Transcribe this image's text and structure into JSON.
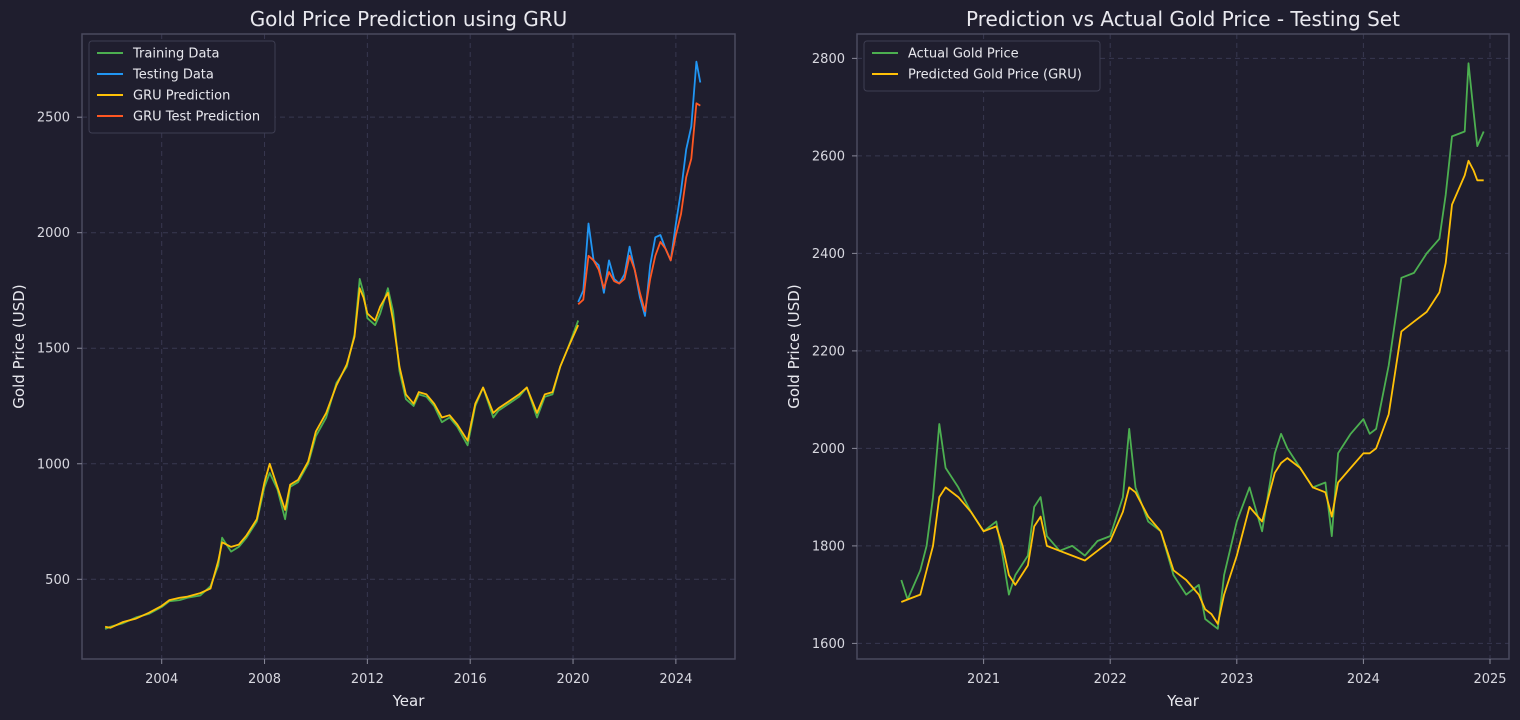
{
  "chart_data": [
    {
      "type": "line",
      "title": "Gold Price Prediction using GRU",
      "xlabel": "Year",
      "ylabel": "Gold Price (USD)",
      "xlim": [
        2000.9,
        2026.3
      ],
      "ylim": [
        155,
        2860
      ],
      "xticks": [
        2004,
        2008,
        2012,
        2016,
        2020,
        2024
      ],
      "yticks": [
        500,
        1000,
        1500,
        2000,
        2500
      ],
      "grid": true,
      "legend_position": "top-left",
      "series": [
        {
          "name": "Training Data",
          "color": "#4caf50",
          "x": [
            2001.8,
            2002.0,
            2002.5,
            2003.0,
            2003.5,
            2004.0,
            2004.3,
            2004.7,
            2005.0,
            2005.5,
            2005.9,
            2006.2,
            2006.35,
            2006.7,
            2007.0,
            2007.3,
            2007.7,
            2008.0,
            2008.2,
            2008.5,
            2008.8,
            2009.0,
            2009.3,
            2009.7,
            2010.0,
            2010.4,
            2010.8,
            2011.2,
            2011.5,
            2011.7,
            2011.85,
            2012.0,
            2012.3,
            2012.5,
            2012.8,
            2013.0,
            2013.25,
            2013.5,
            2013.8,
            2014.0,
            2014.3,
            2014.6,
            2014.9,
            2015.2,
            2015.5,
            2015.9,
            2016.2,
            2016.5,
            2016.9,
            2017.1,
            2017.5,
            2017.9,
            2018.2,
            2018.6,
            2018.9,
            2019.2,
            2019.5,
            2019.8,
            2020.0,
            2020.2
          ],
          "y": [
            285,
            295,
            310,
            335,
            350,
            380,
            405,
            410,
            420,
            430,
            470,
            560,
            680,
            620,
            640,
            680,
            750,
            900,
            960,
            890,
            760,
            900,
            920,
            1000,
            1120,
            1200,
            1350,
            1420,
            1560,
            1800,
            1740,
            1630,
            1600,
            1650,
            1760,
            1660,
            1400,
            1280,
            1250,
            1300,
            1290,
            1250,
            1180,
            1200,
            1160,
            1080,
            1250,
            1330,
            1200,
            1230,
            1260,
            1290,
            1330,
            1200,
            1290,
            1300,
            1420,
            1500,
            1560,
            1620
          ]
        },
        {
          "name": "Testing Data",
          "color": "#2196f3",
          "x": [
            2020.2,
            2020.4,
            2020.6,
            2020.8,
            2021.0,
            2021.2,
            2021.4,
            2021.6,
            2021.8,
            2022.0,
            2022.2,
            2022.4,
            2022.6,
            2022.8,
            2023.0,
            2023.2,
            2023.4,
            2023.6,
            2023.8,
            2024.0,
            2024.2,
            2024.4,
            2024.6,
            2024.8,
            2024.95
          ],
          "y": [
            1700,
            1750,
            2040,
            1880,
            1860,
            1740,
            1880,
            1800,
            1780,
            1820,
            1940,
            1840,
            1720,
            1640,
            1860,
            1980,
            1990,
            1930,
            1880,
            2040,
            2180,
            2360,
            2460,
            2740,
            2650
          ]
        },
        {
          "name": "GRU Prediction",
          "color": "#ffc107",
          "x": [
            2001.8,
            2002.0,
            2002.5,
            2003.0,
            2003.5,
            2004.0,
            2004.3,
            2004.7,
            2005.0,
            2005.5,
            2005.9,
            2006.2,
            2006.35,
            2006.7,
            2007.0,
            2007.3,
            2007.7,
            2008.0,
            2008.2,
            2008.5,
            2008.8,
            2009.0,
            2009.3,
            2009.7,
            2010.0,
            2010.4,
            2010.8,
            2011.2,
            2011.5,
            2011.7,
            2011.85,
            2012.0,
            2012.3,
            2012.5,
            2012.8,
            2013.0,
            2013.25,
            2013.5,
            2013.8,
            2014.0,
            2014.3,
            2014.6,
            2014.9,
            2015.2,
            2015.5,
            2015.9,
            2016.2,
            2016.5,
            2016.9,
            2017.1,
            2017.5,
            2017.9,
            2018.2,
            2018.6,
            2018.9,
            2019.2,
            2019.5,
            2019.8,
            2020.0,
            2020.2
          ],
          "y": [
            295,
            290,
            315,
            330,
            355,
            385,
            410,
            420,
            425,
            440,
            460,
            580,
            660,
            640,
            650,
            690,
            760,
            920,
            1000,
            900,
            800,
            910,
            930,
            1010,
            1140,
            1220,
            1340,
            1430,
            1550,
            1760,
            1720,
            1650,
            1620,
            1680,
            1740,
            1620,
            1420,
            1300,
            1260,
            1310,
            1300,
            1260,
            1200,
            1210,
            1170,
            1100,
            1260,
            1330,
            1220,
            1240,
            1270,
            1300,
            1330,
            1220,
            1300,
            1310,
            1420,
            1500,
            1550,
            1600
          ]
        },
        {
          "name": "GRU Test Prediction",
          "color": "#ff5722",
          "x": [
            2020.2,
            2020.4,
            2020.6,
            2020.8,
            2021.0,
            2021.2,
            2021.4,
            2021.6,
            2021.8,
            2022.0,
            2022.2,
            2022.4,
            2022.6,
            2022.8,
            2023.0,
            2023.2,
            2023.4,
            2023.6,
            2023.8,
            2024.0,
            2024.2,
            2024.4,
            2024.6,
            2024.8,
            2024.95
          ],
          "y": [
            1690,
            1710,
            1900,
            1880,
            1840,
            1760,
            1830,
            1790,
            1780,
            1800,
            1900,
            1840,
            1740,
            1660,
            1800,
            1900,
            1960,
            1930,
            1880,
            1990,
            2080,
            2240,
            2320,
            2560,
            2550
          ]
        }
      ]
    },
    {
      "type": "line",
      "title": "Prediction vs Actual Gold Price - Testing Set",
      "xlabel": "Year",
      "ylabel": "Gold Price (USD)",
      "xlim": [
        2020.0,
        2025.15
      ],
      "ylim": [
        1568,
        2850
      ],
      "xticks": [
        2021,
        2022,
        2023,
        2024,
        2025
      ],
      "yticks": [
        1600,
        1800,
        2000,
        2200,
        2400,
        2600,
        2800
      ],
      "grid": true,
      "legend_position": "top-left",
      "series": [
        {
          "name": "Actual Gold Price",
          "color": "#4caf50",
          "x": [
            2020.35,
            2020.4,
            2020.5,
            2020.55,
            2020.6,
            2020.65,
            2020.7,
            2020.8,
            2020.9,
            2021.0,
            2021.1,
            2021.15,
            2021.2,
            2021.25,
            2021.35,
            2021.4,
            2021.45,
            2021.5,
            2021.6,
            2021.7,
            2021.8,
            2021.9,
            2022.0,
            2022.1,
            2022.15,
            2022.2,
            2022.3,
            2022.4,
            2022.5,
            2022.6,
            2022.7,
            2022.75,
            2022.8,
            2022.85,
            2022.9,
            2023.0,
            2023.1,
            2023.2,
            2023.3,
            2023.35,
            2023.4,
            2023.5,
            2023.6,
            2023.7,
            2023.75,
            2023.8,
            2023.9,
            2024.0,
            2024.05,
            2024.1,
            2024.2,
            2024.3,
            2024.4,
            2024.5,
            2024.6,
            2024.65,
            2024.7,
            2024.8,
            2024.83,
            2024.87,
            2024.9,
            2024.95
          ],
          "y": [
            1730,
            1690,
            1750,
            1800,
            1900,
            2050,
            1960,
            1920,
            1870,
            1830,
            1850,
            1780,
            1700,
            1740,
            1780,
            1880,
            1900,
            1820,
            1790,
            1800,
            1780,
            1810,
            1820,
            1900,
            2040,
            1920,
            1850,
            1830,
            1740,
            1700,
            1720,
            1650,
            1640,
            1630,
            1740,
            1850,
            1920,
            1830,
            1990,
            2030,
            2000,
            1960,
            1920,
            1930,
            1820,
            1990,
            2030,
            2060,
            2030,
            2040,
            2170,
            2350,
            2360,
            2400,
            2430,
            2520,
            2640,
            2650,
            2790,
            2690,
            2620,
            2650
          ]
        },
        {
          "name": "Predicted Gold Price (GRU)",
          "color": "#ffc107",
          "x": [
            2020.35,
            2020.4,
            2020.5,
            2020.55,
            2020.6,
            2020.65,
            2020.7,
            2020.8,
            2020.9,
            2021.0,
            2021.1,
            2021.15,
            2021.2,
            2021.25,
            2021.35,
            2021.4,
            2021.45,
            2021.5,
            2021.6,
            2021.7,
            2021.8,
            2021.9,
            2022.0,
            2022.1,
            2022.15,
            2022.2,
            2022.3,
            2022.4,
            2022.5,
            2022.6,
            2022.7,
            2022.75,
            2022.8,
            2022.85,
            2022.9,
            2023.0,
            2023.1,
            2023.2,
            2023.3,
            2023.35,
            2023.4,
            2023.5,
            2023.6,
            2023.7,
            2023.75,
            2023.8,
            2023.9,
            2024.0,
            2024.05,
            2024.1,
            2024.2,
            2024.3,
            2024.4,
            2024.5,
            2024.6,
            2024.65,
            2024.7,
            2024.8,
            2024.83,
            2024.87,
            2024.9,
            2024.95
          ],
          "y": [
            1685,
            1690,
            1700,
            1750,
            1800,
            1900,
            1920,
            1900,
            1870,
            1830,
            1840,
            1800,
            1740,
            1720,
            1760,
            1840,
            1860,
            1800,
            1790,
            1780,
            1770,
            1790,
            1810,
            1870,
            1920,
            1910,
            1860,
            1830,
            1750,
            1730,
            1700,
            1670,
            1660,
            1640,
            1700,
            1780,
            1880,
            1850,
            1950,
            1970,
            1980,
            1960,
            1920,
            1910,
            1860,
            1930,
            1960,
            1990,
            1990,
            2000,
            2070,
            2240,
            2260,
            2280,
            2320,
            2380,
            2500,
            2560,
            2590,
            2570,
            2550,
            2550
          ]
        }
      ]
    }
  ]
}
